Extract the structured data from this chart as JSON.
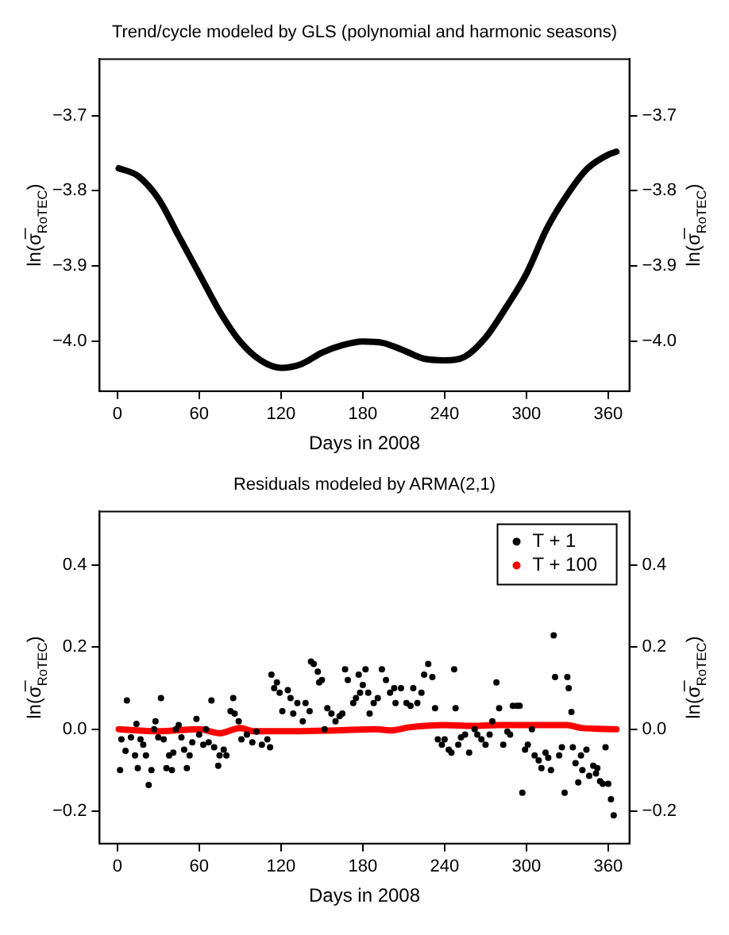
{
  "chart_data": [
    {
      "type": "line",
      "title": "Trend/cycle modeled by GLS (polynomial and harmonic seasons)",
      "xlabel": "Days in 2008",
      "ylabel": "ln(σ̅$_{RoTEC}$)",
      "y2label": "ln(σ̅$_{RoTEC}$)",
      "xlim": [
        -13,
        375.5
      ],
      "xticks": [
        0,
        60,
        120,
        180,
        240,
        300,
        360
      ],
      "ylim": [
        -4.066,
        -3.625
      ],
      "yticks": [
        {
          "value": -4.0,
          "label": "−4.0"
        },
        {
          "value": -3.9,
          "label": "−3.9"
        },
        {
          "value": -3.8,
          "label": "−3.8"
        },
        {
          "value": -3.7,
          "label": "−3.7"
        }
      ],
      "y2lim": [
        -4.066,
        -3.625
      ],
      "y2ticks": [
        {
          "value": -4.0,
          "label": "−4.0"
        },
        {
          "value": -3.9,
          "label": "−3.9"
        },
        {
          "value": -3.8,
          "label": "−3.8"
        },
        {
          "value": -3.7,
          "label": "−3.7"
        }
      ],
      "grid": false,
      "legend": false,
      "line_style": "solid",
      "series": [
        {
          "color": "#000000",
          "x": [
            1,
            15,
            30,
            45,
            60,
            75,
            90,
            105,
            120,
            135,
            150,
            165,
            180,
            195,
            210,
            225,
            240,
            255,
            270,
            285,
            300,
            315,
            330,
            345,
            360,
            366
          ],
          "values": [
            -3.77,
            -3.78,
            -3.81,
            -3.86,
            -3.91,
            -3.96,
            -4.0,
            -4.025,
            -4.035,
            -4.03,
            -4.015,
            -4.005,
            -4.0,
            -4.002,
            -4.012,
            -4.023,
            -4.025,
            -4.02,
            -3.995,
            -3.955,
            -3.91,
            -3.85,
            -3.805,
            -3.77,
            -3.752,
            -3.748
          ]
        }
      ]
    },
    {
      "type": "scatter",
      "title": "Residuals modeled by ARMA(2,1)",
      "xlabel": "Days in 2008",
      "ylabel": "ln(σ̅$_{RoTEC}$)",
      "y2label": "ln(σ̅$_{RoTEC}$)",
      "xlim": [
        -13,
        375.5
      ],
      "xticks": [
        0,
        60,
        120,
        180,
        240,
        300,
        360
      ],
      "ylim": [
        -0.279,
        0.531
      ],
      "yticks": [
        {
          "value": -0.2,
          "label": "−0.2"
        },
        {
          "value": 0,
          "label": "0.0"
        },
        0.2,
        0.4
      ],
      "y2lim": [
        -0.279,
        0.531
      ],
      "y2ticks": [
        {
          "value": -0.2,
          "label": "−0.2"
        },
        {
          "value": 0,
          "label": "0.0"
        },
        0.2,
        0.4
      ],
      "grid": false,
      "legend": "top right",
      "series": [
        {
          "name": "T + 1",
          "color": "#000000",
          "marker": "circle",
          "x": [
            2,
            3,
            6,
            7,
            10,
            13,
            14,
            15,
            17,
            19,
            21,
            23,
            25,
            27,
            28,
            30,
            32,
            34,
            36,
            38,
            40,
            41,
            43,
            45,
            47,
            49,
            51,
            53,
            55,
            58,
            60,
            63,
            65,
            67,
            69,
            71,
            74,
            75,
            78,
            80,
            83,
            85,
            86,
            89,
            91,
            95,
            99,
            102,
            106,
            110,
            112,
            113,
            115,
            117,
            119,
            121,
            125,
            127,
            129,
            132,
            136,
            138,
            141,
            142,
            144,
            147,
            148,
            150,
            152,
            154,
            157,
            160,
            163,
            165,
            167,
            169,
            173,
            175,
            177,
            180,
            184,
            188,
            178,
            182,
            185,
            191,
            194,
            197,
            200,
            203,
            204,
            208,
            212,
            215,
            217,
            220,
            223,
            225,
            228,
            231,
            233,
            235,
            238,
            240,
            243,
            245,
            247,
            248,
            250,
            252,
            255,
            258,
            262,
            264,
            267,
            270,
            273,
            275,
            278,
            280,
            283,
            286,
            288,
            290,
            293,
            295,
            297,
            299,
            301,
            304,
            306,
            309,
            311,
            314,
            316,
            318,
            320,
            321,
            324,
            326,
            328,
            330,
            331,
            333,
            334,
            336,
            338,
            340,
            341,
            344,
            346,
            349,
            351,
            352,
            354,
            356,
            358,
            360,
            362,
            364
          ],
          "values": [
            -0.1,
            -0.025,
            -0.053,
            0.07,
            -0.02,
            -0.064,
            0.013,
            -0.095,
            -0.025,
            -0.038,
            -0.064,
            -0.136,
            -0.1,
            0,
            0.019,
            -0.02,
            0.076,
            -0.025,
            -0.095,
            -0.064,
            -0.1,
            -0.057,
            0,
            0.01,
            -0.02,
            -0.05,
            -0.095,
            -0.064,
            -0.032,
            0.025,
            -0.013,
            -0.038,
            0,
            -0.032,
            0.07,
            -0.044,
            -0.089,
            -0.064,
            -0.05,
            -0.064,
            0.044,
            0.076,
            0.038,
            0.019,
            -0.025,
            -0.013,
            -0.032,
            -0.006,
            -0.038,
            -0.025,
            -0.044,
            0.133,
            0.1,
            0.114,
            0.089,
            0.044,
            0.095,
            0.076,
            0.038,
            0.064,
            0.019,
            0.064,
            0.044,
            0.165,
            0.159,
            0.14,
            0.114,
            0.12,
            0,
            0.051,
            0.038,
            0.019,
            0.032,
            0.038,
            0.146,
            0.12,
            0.064,
            0.076,
            0.133,
            0.108,
            0.089,
            0.064,
            0.089,
            0.146,
            0.038,
            0.076,
            0.146,
            0.12,
            0.089,
            0.1,
            0.064,
            0.1,
            0.064,
            0.057,
            0.1,
            0.064,
            0.089,
            0.133,
            0.159,
            0.127,
            0.051,
            -0.025,
            -0.038,
            -0.025,
            -0.05,
            -0.057,
            0.146,
            0.051,
            -0.038,
            -0.02,
            -0.013,
            -0.057,
            0,
            -0.013,
            -0.025,
            -0.038,
            -0.013,
            0.019,
            0.114,
            0.051,
            -0.038,
            -0.006,
            -0.013,
            0.057,
            0.057,
            0.057,
            -0.155,
            -0.05,
            -0.038,
            0,
            -0.064,
            -0.076,
            -0.095,
            -0.057,
            -0.07,
            -0.1,
            0.229,
            0.127,
            -0.064,
            -0.044,
            -0.155,
            0.127,
            0.1,
            0.042,
            -0.044,
            -0.083,
            -0.13,
            -0.064,
            -0.1,
            -0.05,
            -0.114,
            -0.089,
            -0.108,
            -0.095,
            -0.127,
            -0.133,
            -0.044,
            -0.133,
            -0.171,
            -0.21
          ]
        },
        {
          "name": "T + 100",
          "type": "line",
          "marker": "none",
          "color": "#ff0000",
          "x": [
            1,
            30,
            60,
            75,
            90,
            100,
            130,
            160,
            190,
            200,
            215,
            240,
            260,
            280,
            300,
            320,
            330,
            340,
            366
          ],
          "values": [
            0,
            -0.005,
            0,
            -0.01,
            0.003,
            -0.005,
            -0.005,
            -0.003,
            0,
            -0.003,
            0.005,
            0.01,
            0.008,
            0.01,
            0.01,
            0.01,
            0.01,
            0.003,
            0
          ]
        }
      ]
    }
  ]
}
